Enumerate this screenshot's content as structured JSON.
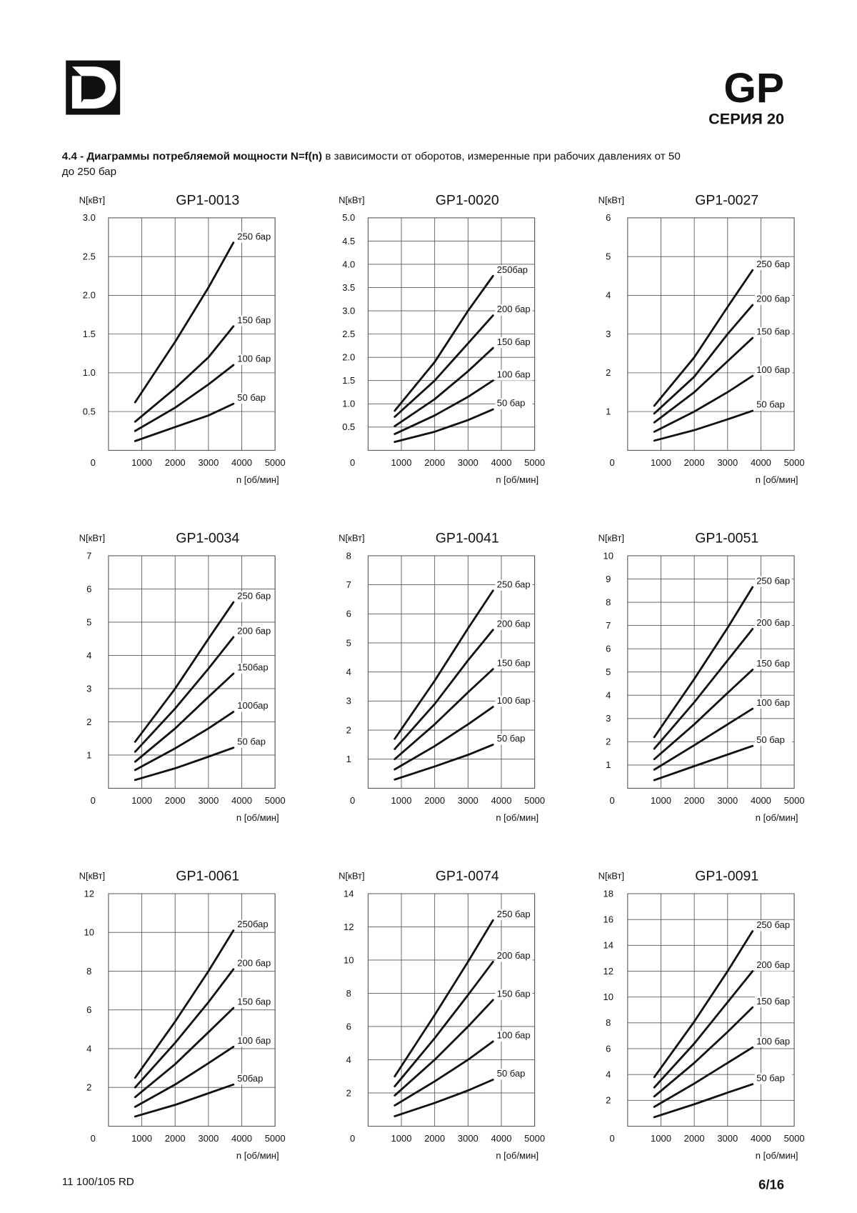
{
  "header": {
    "brand": "GP",
    "series": "СЕРИЯ 20"
  },
  "heading": {
    "bold": "4.4 - Диаграммы потребляемой мощности N=f(n)",
    "lines": [
      "в зависимости от оборотов, измеренные при рабочих давлениях от 50",
      "до 250 бар"
    ]
  },
  "footer": {
    "code": "11 100/105 RD",
    "page": "6/16"
  },
  "chart_data": [
    {
      "type": "line",
      "title": "GP1-0013",
      "y_label": "N[кВт]",
      "x_label": "n [об/мин]",
      "color": "#111111",
      "grid": true,
      "x": [
        800,
        2000,
        3000,
        3750
      ],
      "xlim": [
        0,
        5000
      ],
      "xticks": [
        1000,
        2000,
        3000,
        4000,
        5000
      ],
      "ylim": [
        0,
        3
      ],
      "yticks": [
        0,
        {
          "value": 0.5,
          "label": "0.5"
        },
        {
          "value": 1,
          "label": "1.0"
        },
        {
          "value": 1.5,
          "label": "1.5"
        },
        {
          "value": 2,
          "label": "2.0"
        },
        {
          "value": 2.5,
          "label": "2.5"
        },
        {
          "value": 3,
          "label": "3.0"
        }
      ],
      "series": [
        {
          "name": "250 бар",
          "values": [
            0.62,
            1.4,
            2.1,
            2.68
          ]
        },
        {
          "name": "150 бар",
          "values": [
            0.37,
            0.8,
            1.2,
            1.6
          ]
        },
        {
          "name": "100 бар",
          "values": [
            0.25,
            0.55,
            0.85,
            1.1
          ]
        },
        {
          "name": "50 бар",
          "values": [
            0.12,
            0.3,
            0.45,
            0.6
          ]
        }
      ]
    },
    {
      "type": "line",
      "title": "GP1-0020",
      "y_label": "N[кВт]",
      "x_label": "n [об/мин]",
      "color": "#111111",
      "grid": true,
      "x": [
        800,
        2000,
        3000,
        3750
      ],
      "xlim": [
        0,
        5000
      ],
      "xticks": [
        1000,
        2000,
        3000,
        4000,
        5000
      ],
      "ylim": [
        0,
        5
      ],
      "yticks": [
        0,
        {
          "value": 0.5,
          "label": "0.5"
        },
        {
          "value": 1,
          "label": "1.0"
        },
        {
          "value": 1.5,
          "label": "1.5"
        },
        {
          "value": 2,
          "label": "2.0"
        },
        {
          "value": 2.5,
          "label": "2.5"
        },
        {
          "value": 3,
          "label": "3.0"
        },
        {
          "value": 3.5,
          "label": "3.5"
        },
        {
          "value": 4,
          "label": "4.0"
        },
        {
          "value": 4.5,
          "label": "4.5"
        },
        {
          "value": 5,
          "label": "5.0"
        }
      ],
      "series": [
        {
          "name": "250бар",
          "values": [
            0.85,
            1.9,
            3.0,
            3.75
          ]
        },
        {
          "name": "200 бар",
          "values": [
            0.72,
            1.5,
            2.3,
            2.9
          ]
        },
        {
          "name": "150 бар",
          "values": [
            0.52,
            1.1,
            1.7,
            2.2
          ]
        },
        {
          "name": "100 бар",
          "values": [
            0.35,
            0.75,
            1.15,
            1.5
          ]
        },
        {
          "name": "50 бар",
          "values": [
            0.18,
            0.4,
            0.65,
            0.88
          ]
        }
      ]
    },
    {
      "type": "line",
      "title": "GP1-0027",
      "y_label": "N[кВт]",
      "x_label": "n [об/мин]",
      "color": "#111111",
      "grid": true,
      "x": [
        800,
        2000,
        3000,
        3750
      ],
      "xlim": [
        0,
        5000
      ],
      "xticks": [
        1000,
        2000,
        3000,
        4000,
        5000
      ],
      "ylim": [
        0,
        6
      ],
      "yticks": [
        0,
        1,
        2,
        3,
        4,
        5,
        6
      ],
      "series": [
        {
          "name": "250 бар",
          "values": [
            1.15,
            2.4,
            3.7,
            4.65
          ]
        },
        {
          "name": "200 бар",
          "values": [
            0.95,
            1.9,
            3.0,
            3.75
          ]
        },
        {
          "name": "150 бар",
          "values": [
            0.72,
            1.5,
            2.3,
            2.9
          ]
        },
        {
          "name": "100 бар",
          "values": [
            0.48,
            1.0,
            1.5,
            1.92
          ]
        },
        {
          "name": "50 бар",
          "values": [
            0.25,
            0.52,
            0.8,
            1.02
          ]
        }
      ]
    },
    {
      "type": "line",
      "title": "GP1-0034",
      "y_label": "N[кВт]",
      "x_label": "n [об/мин]",
      "color": "#111111",
      "grid": true,
      "x": [
        800,
        2000,
        3000,
        3750
      ],
      "xlim": [
        0,
        5000
      ],
      "xticks": [
        1000,
        2000,
        3000,
        4000,
        5000
      ],
      "ylim": [
        0,
        7
      ],
      "yticks": [
        0,
        1,
        2,
        3,
        4,
        5,
        6,
        7
      ],
      "series": [
        {
          "name": "250 бар",
          "values": [
            1.4,
            3.0,
            4.5,
            5.6
          ]
        },
        {
          "name": "200 бар",
          "values": [
            1.1,
            2.4,
            3.6,
            4.55
          ]
        },
        {
          "name": "150бар",
          "values": [
            0.8,
            1.8,
            2.75,
            3.45
          ]
        },
        {
          "name": "100бар",
          "values": [
            0.55,
            1.2,
            1.8,
            2.3
          ]
        },
        {
          "name": "50 бар",
          "values": [
            0.25,
            0.6,
            0.95,
            1.22
          ]
        }
      ]
    },
    {
      "type": "line",
      "title": "GP1-0041",
      "y_label": "N[кВт]",
      "x_label": "n [об/мин]",
      "color": "#111111",
      "grid": true,
      "x": [
        800,
        2000,
        3000,
        3750
      ],
      "xlim": [
        0,
        5000
      ],
      "xticks": [
        1000,
        2000,
        3000,
        4000,
        5000
      ],
      "ylim": [
        0,
        8
      ],
      "yticks": [
        0,
        1,
        2,
        3,
        4,
        5,
        6,
        7,
        8
      ],
      "series": [
        {
          "name": "250 бар",
          "values": [
            1.7,
            3.7,
            5.5,
            6.8
          ]
        },
        {
          "name": "200 бар",
          "values": [
            1.35,
            2.9,
            4.4,
            5.45
          ]
        },
        {
          "name": "150 бар",
          "values": [
            1.0,
            2.2,
            3.3,
            4.1
          ]
        },
        {
          "name": "100 бар",
          "values": [
            0.65,
            1.45,
            2.2,
            2.8
          ]
        },
        {
          "name": "50 бар",
          "values": [
            0.3,
            0.75,
            1.15,
            1.5
          ]
        }
      ]
    },
    {
      "type": "line",
      "title": "GP1-0051",
      "y_label": "N[кВт]",
      "x_label": "n [об/мин]",
      "color": "#111111",
      "grid": true,
      "x": [
        800,
        2000,
        3000,
        3750
      ],
      "xlim": [
        0,
        5000
      ],
      "xticks": [
        1000,
        2000,
        3000,
        4000,
        5000
      ],
      "ylim": [
        0,
        10
      ],
      "yticks": [
        0,
        1,
        2,
        3,
        4,
        5,
        6,
        7,
        8,
        9,
        10
      ],
      "series": [
        {
          "name": "250 бар",
          "values": [
            2.2,
            4.7,
            6.9,
            8.65
          ]
        },
        {
          "name": "200 бар",
          "values": [
            1.7,
            3.7,
            5.5,
            6.85
          ]
        },
        {
          "name": "150 бар",
          "values": [
            1.25,
            2.75,
            4.1,
            5.1
          ]
        },
        {
          "name": "100 бар",
          "values": [
            0.8,
            1.85,
            2.75,
            3.42
          ]
        },
        {
          "name": "50 бар",
          "values": [
            0.35,
            0.95,
            1.45,
            1.82
          ]
        }
      ]
    },
    {
      "type": "line",
      "title": "GP1-0061",
      "y_label": "N[кВт]",
      "x_label": "n [об/мин]",
      "color": "#111111",
      "grid": true,
      "x": [
        800,
        2000,
        3000,
        3750
      ],
      "xlim": [
        0,
        5000
      ],
      "xticks": [
        1000,
        2000,
        3000,
        4000,
        5000
      ],
      "ylim": [
        0,
        12
      ],
      "yticks": [
        0,
        2,
        4,
        6,
        8,
        10,
        12
      ],
      "series": [
        {
          "name": "250бар",
          "values": [
            2.5,
            5.4,
            8.0,
            10.1
          ]
        },
        {
          "name": "200 бар",
          "values": [
            2.0,
            4.3,
            6.4,
            8.1
          ]
        },
        {
          "name": "150 бар",
          "values": [
            1.5,
            3.2,
            4.85,
            6.1
          ]
        },
        {
          "name": "100 бар",
          "values": [
            1.0,
            2.15,
            3.25,
            4.1
          ]
        },
        {
          "name": "50бар",
          "values": [
            0.5,
            1.1,
            1.7,
            2.15
          ]
        }
      ]
    },
    {
      "type": "line",
      "title": "GP1-0074",
      "y_label": "N[кВт]",
      "x_label": "n [об/мин]",
      "color": "#111111",
      "grid": true,
      "x": [
        800,
        2000,
        3000,
        3750
      ],
      "xlim": [
        0,
        5000
      ],
      "xticks": [
        1000,
        2000,
        3000,
        4000,
        5000
      ],
      "ylim": [
        0,
        14
      ],
      "yticks": [
        0,
        2,
        4,
        6,
        8,
        10,
        12,
        14
      ],
      "series": [
        {
          "name": "250 бар",
          "values": [
            3.0,
            6.7,
            9.9,
            12.4
          ]
        },
        {
          "name": "200 бар",
          "values": [
            2.4,
            5.3,
            7.9,
            9.9
          ]
        },
        {
          "name": "150 бар",
          "values": [
            1.85,
            4.0,
            6.0,
            7.6
          ]
        },
        {
          "name": "100 бар",
          "values": [
            1.25,
            2.7,
            4.0,
            5.1
          ]
        },
        {
          "name": "50 бар",
          "values": [
            0.6,
            1.4,
            2.15,
            2.8
          ]
        }
      ]
    },
    {
      "type": "line",
      "title": "GP1-0091",
      "y_label": "N[кВт]",
      "x_label": "n [об/мин]",
      "color": "#111111",
      "grid": true,
      "x": [
        800,
        2000,
        3000,
        3750
      ],
      "xlim": [
        0,
        5000
      ],
      "xticks": [
        1000,
        2000,
        3000,
        4000,
        5000
      ],
      "ylim": [
        0,
        18
      ],
      "yticks": [
        0,
        2,
        4,
        6,
        8,
        10,
        12,
        14,
        16,
        18
      ],
      "series": [
        {
          "name": "250 бар",
          "values": [
            3.8,
            8.1,
            12.0,
            15.1
          ]
        },
        {
          "name": "200 бар",
          "values": [
            3.0,
            6.4,
            9.6,
            12.0
          ]
        },
        {
          "name": "150 бар",
          "values": [
            2.3,
            4.9,
            7.3,
            9.2
          ]
        },
        {
          "name": "100 бар",
          "values": [
            1.5,
            3.3,
            4.9,
            6.1
          ]
        },
        {
          "name": "50 бар",
          "values": [
            0.7,
            1.7,
            2.6,
            3.25
          ]
        }
      ]
    }
  ]
}
